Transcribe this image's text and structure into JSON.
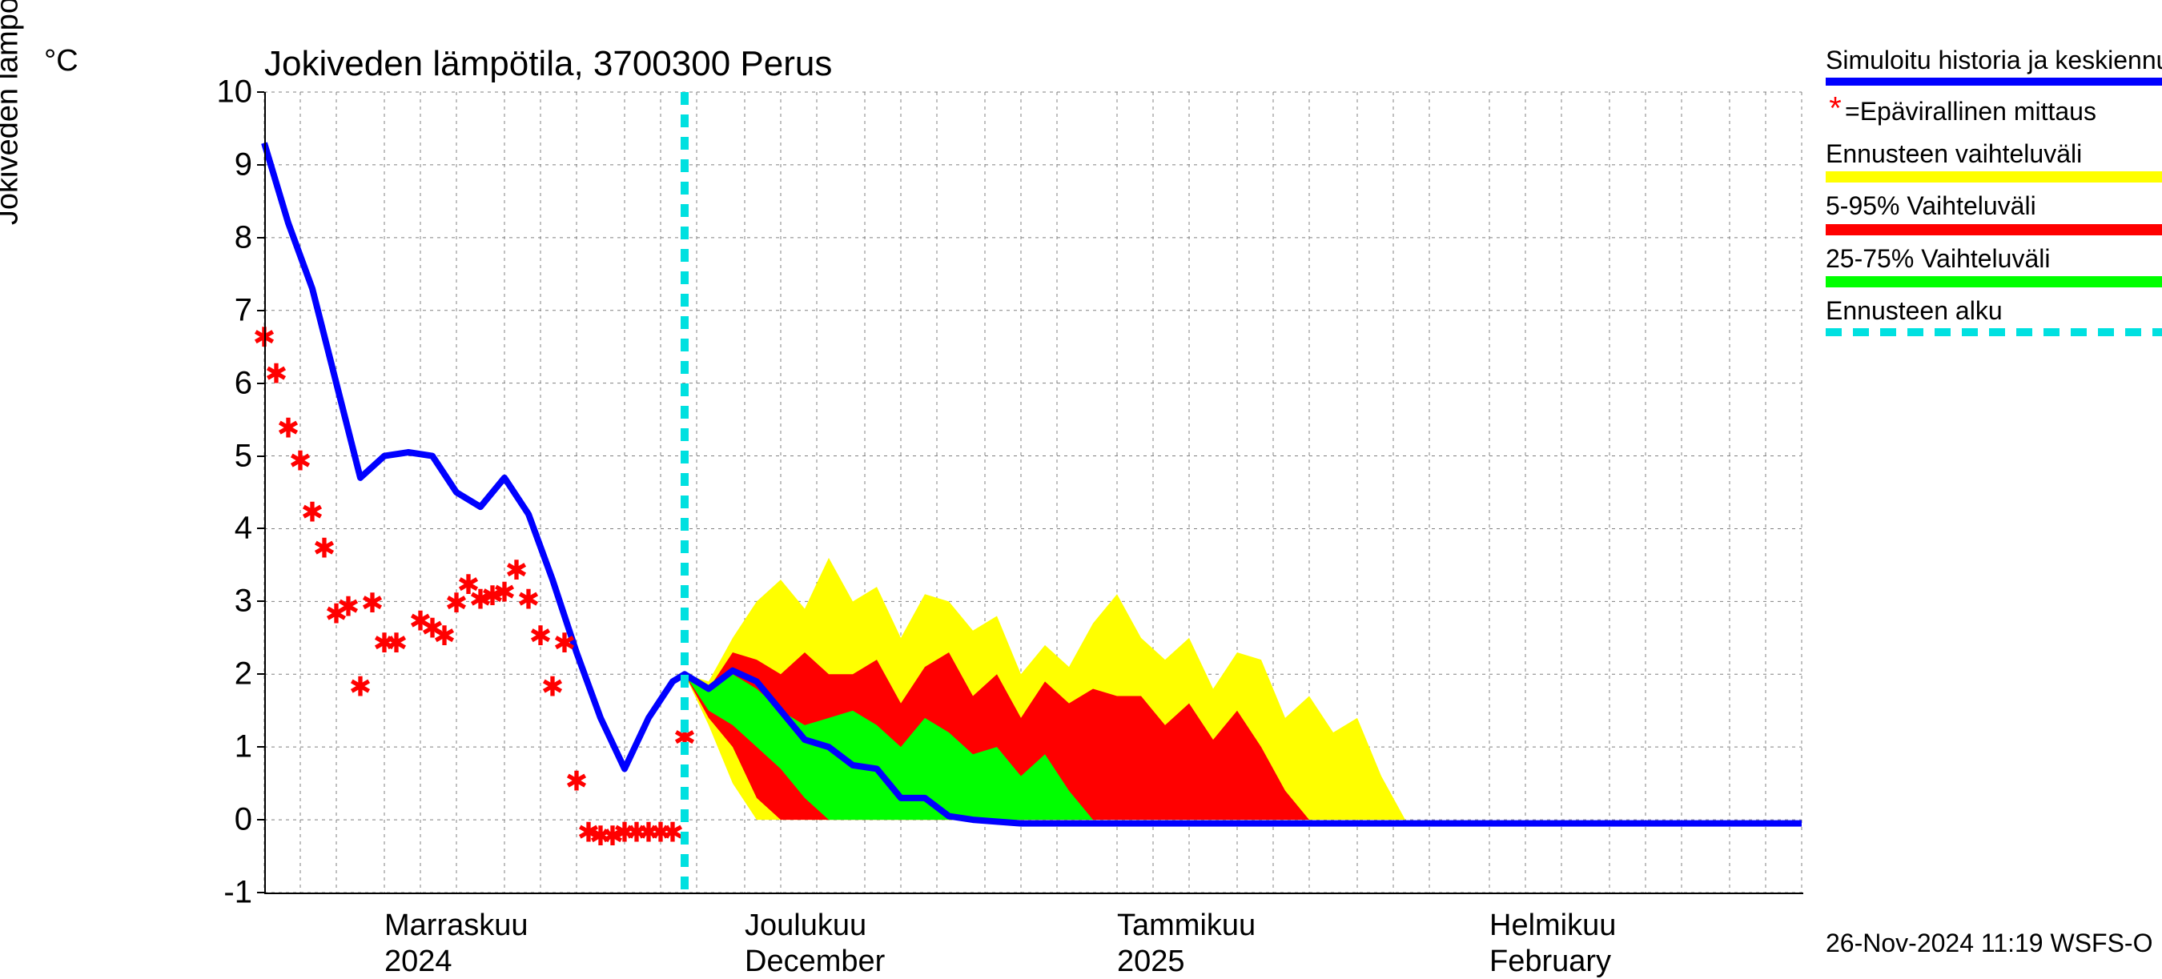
{
  "chart": {
    "title": "Jokiveden lämpötila, 3700300 Perus",
    "y_axis_label": "Jokiveden lämpötila / Water temperature",
    "y_axis_unit": "°C",
    "ylim": [
      -1,
      10
    ],
    "ytick_step": 1,
    "yticks": [
      -1,
      0,
      1,
      2,
      3,
      4,
      5,
      6,
      7,
      8,
      9,
      10
    ],
    "x_domain_days": 128,
    "x_start_date": "2024-10-22",
    "x_month_labels": [
      {
        "label": "Marraskuu",
        "sub": "2024",
        "day": 10
      },
      {
        "label": "Joulukuu",
        "sub": "December",
        "day": 40
      },
      {
        "label": "Tammikuu",
        "sub": "2025",
        "day": 71
      },
      {
        "label": "Helmikuu",
        "sub": "February",
        "day": 102
      }
    ],
    "minor_xgrid_days": [
      0,
      3,
      6,
      10,
      13,
      16,
      20,
      23,
      26,
      30,
      33,
      36,
      40,
      43,
      46,
      50,
      53,
      56,
      60,
      63,
      66,
      71,
      74,
      77,
      81,
      84,
      87,
      91,
      94,
      97,
      102,
      105,
      108,
      112,
      115,
      118,
      122,
      125,
      128
    ],
    "forecast_start_day": 35,
    "colors": {
      "blue_line": "#0000ff",
      "obs_marker": "#ff0000",
      "yellow_band": "#ffff00",
      "red_band": "#ff0000",
      "green_band": "#00ff00",
      "cyan_line": "#00e0e0",
      "grid": "#808080",
      "background": "#ffffff"
    },
    "line_width_blue": 8,
    "cyan_dash": "16 12",
    "blue_line": [
      {
        "d": 0,
        "v": 9.3
      },
      {
        "d": 2,
        "v": 8.2
      },
      {
        "d": 4,
        "v": 7.3
      },
      {
        "d": 6,
        "v": 6.0
      },
      {
        "d": 8,
        "v": 4.7
      },
      {
        "d": 10,
        "v": 5.0
      },
      {
        "d": 12,
        "v": 5.05
      },
      {
        "d": 14,
        "v": 5.0
      },
      {
        "d": 16,
        "v": 4.5
      },
      {
        "d": 18,
        "v": 4.3
      },
      {
        "d": 20,
        "v": 4.7
      },
      {
        "d": 22,
        "v": 4.2
      },
      {
        "d": 24,
        "v": 3.3
      },
      {
        "d": 26,
        "v": 2.3
      },
      {
        "d": 28,
        "v": 1.4
      },
      {
        "d": 30,
        "v": 0.7
      },
      {
        "d": 32,
        "v": 1.4
      },
      {
        "d": 34,
        "v": 1.9
      },
      {
        "d": 35,
        "v": 2.0
      },
      {
        "d": 37,
        "v": 1.8
      },
      {
        "d": 39,
        "v": 2.05
      },
      {
        "d": 41,
        "v": 1.9
      },
      {
        "d": 43,
        "v": 1.5
      },
      {
        "d": 45,
        "v": 1.1
      },
      {
        "d": 47,
        "v": 1.0
      },
      {
        "d": 49,
        "v": 0.75
      },
      {
        "d": 51,
        "v": 0.7
      },
      {
        "d": 53,
        "v": 0.3
      },
      {
        "d": 55,
        "v": 0.3
      },
      {
        "d": 57,
        "v": 0.05
      },
      {
        "d": 59,
        "v": 0.0
      },
      {
        "d": 63,
        "v": -0.05
      },
      {
        "d": 128,
        "v": -0.05
      }
    ],
    "yellow_band": {
      "upper": [
        {
          "d": 35,
          "v": 2.0
        },
        {
          "d": 37,
          "v": 1.9
        },
        {
          "d": 39,
          "v": 2.5
        },
        {
          "d": 41,
          "v": 3.0
        },
        {
          "d": 43,
          "v": 3.3
        },
        {
          "d": 45,
          "v": 2.9
        },
        {
          "d": 47,
          "v": 3.6
        },
        {
          "d": 49,
          "v": 3.0
        },
        {
          "d": 51,
          "v": 3.2
        },
        {
          "d": 53,
          "v": 2.5
        },
        {
          "d": 55,
          "v": 3.1
        },
        {
          "d": 57,
          "v": 3.0
        },
        {
          "d": 59,
          "v": 2.6
        },
        {
          "d": 61,
          "v": 2.8
        },
        {
          "d": 63,
          "v": 2.0
        },
        {
          "d": 65,
          "v": 2.4
        },
        {
          "d": 67,
          "v": 2.1
        },
        {
          "d": 69,
          "v": 2.7
        },
        {
          "d": 71,
          "v": 3.1
        },
        {
          "d": 73,
          "v": 2.5
        },
        {
          "d": 75,
          "v": 2.2
        },
        {
          "d": 77,
          "v": 2.5
        },
        {
          "d": 79,
          "v": 1.8
        },
        {
          "d": 81,
          "v": 2.3
        },
        {
          "d": 83,
          "v": 2.2
        },
        {
          "d": 85,
          "v": 1.4
        },
        {
          "d": 87,
          "v": 1.7
        },
        {
          "d": 89,
          "v": 1.2
        },
        {
          "d": 91,
          "v": 1.4
        },
        {
          "d": 93,
          "v": 0.6
        },
        {
          "d": 95,
          "v": 0.0
        }
      ],
      "lower": [
        {
          "d": 35,
          "v": 2.0
        },
        {
          "d": 37,
          "v": 1.3
        },
        {
          "d": 39,
          "v": 0.5
        },
        {
          "d": 41,
          "v": 0.0
        },
        {
          "d": 95,
          "v": 0.0
        }
      ]
    },
    "red_band": {
      "upper": [
        {
          "d": 35,
          "v": 2.0
        },
        {
          "d": 37,
          "v": 1.8
        },
        {
          "d": 39,
          "v": 2.3
        },
        {
          "d": 41,
          "v": 2.2
        },
        {
          "d": 43,
          "v": 2.0
        },
        {
          "d": 45,
          "v": 2.3
        },
        {
          "d": 47,
          "v": 2.0
        },
        {
          "d": 49,
          "v": 2.0
        },
        {
          "d": 51,
          "v": 2.2
        },
        {
          "d": 53,
          "v": 1.6
        },
        {
          "d": 55,
          "v": 2.1
        },
        {
          "d": 57,
          "v": 2.3
        },
        {
          "d": 59,
          "v": 1.7
        },
        {
          "d": 61,
          "v": 2.0
        },
        {
          "d": 63,
          "v": 1.4
        },
        {
          "d": 65,
          "v": 1.9
        },
        {
          "d": 67,
          "v": 1.6
        },
        {
          "d": 69,
          "v": 1.8
        },
        {
          "d": 71,
          "v": 1.7
        },
        {
          "d": 73,
          "v": 1.7
        },
        {
          "d": 75,
          "v": 1.3
        },
        {
          "d": 77,
          "v": 1.6
        },
        {
          "d": 79,
          "v": 1.1
        },
        {
          "d": 81,
          "v": 1.5
        },
        {
          "d": 83,
          "v": 1.0
        },
        {
          "d": 85,
          "v": 0.4
        },
        {
          "d": 87,
          "v": 0.0
        }
      ],
      "lower": [
        {
          "d": 35,
          "v": 2.0
        },
        {
          "d": 37,
          "v": 1.4
        },
        {
          "d": 39,
          "v": 1.0
        },
        {
          "d": 41,
          "v": 0.3
        },
        {
          "d": 43,
          "v": 0.0
        },
        {
          "d": 87,
          "v": 0.0
        }
      ]
    },
    "green_band": {
      "upper": [
        {
          "d": 35,
          "v": 2.0
        },
        {
          "d": 37,
          "v": 1.8
        },
        {
          "d": 39,
          "v": 2.0
        },
        {
          "d": 41,
          "v": 1.8
        },
        {
          "d": 43,
          "v": 1.5
        },
        {
          "d": 45,
          "v": 1.3
        },
        {
          "d": 47,
          "v": 1.4
        },
        {
          "d": 49,
          "v": 1.5
        },
        {
          "d": 51,
          "v": 1.3
        },
        {
          "d": 53,
          "v": 1.0
        },
        {
          "d": 55,
          "v": 1.4
        },
        {
          "d": 57,
          "v": 1.2
        },
        {
          "d": 59,
          "v": 0.9
        },
        {
          "d": 61,
          "v": 1.0
        },
        {
          "d": 63,
          "v": 0.6
        },
        {
          "d": 65,
          "v": 0.9
        },
        {
          "d": 67,
          "v": 0.4
        },
        {
          "d": 69,
          "v": 0.0
        }
      ],
      "lower": [
        {
          "d": 35,
          "v": 2.0
        },
        {
          "d": 37,
          "v": 1.5
        },
        {
          "d": 39,
          "v": 1.3
        },
        {
          "d": 41,
          "v": 1.0
        },
        {
          "d": 43,
          "v": 0.7
        },
        {
          "d": 45,
          "v": 0.3
        },
        {
          "d": 47,
          "v": 0.0
        },
        {
          "d": 69,
          "v": 0.0
        }
      ]
    },
    "observations": [
      {
        "d": 0,
        "v": 6.6
      },
      {
        "d": 1,
        "v": 6.1
      },
      {
        "d": 2,
        "v": 5.35
      },
      {
        "d": 3,
        "v": 4.9
      },
      {
        "d": 4,
        "v": 4.2
      },
      {
        "d": 5,
        "v": 3.7
      },
      {
        "d": 6,
        "v": 2.8
      },
      {
        "d": 7,
        "v": 2.9
      },
      {
        "d": 8,
        "v": 1.8
      },
      {
        "d": 9,
        "v": 2.95
      },
      {
        "d": 10,
        "v": 2.4
      },
      {
        "d": 11,
        "v": 2.4
      },
      {
        "d": 13,
        "v": 2.7
      },
      {
        "d": 14,
        "v": 2.6
      },
      {
        "d": 15,
        "v": 2.5
      },
      {
        "d": 16,
        "v": 2.95
      },
      {
        "d": 17,
        "v": 3.2
      },
      {
        "d": 18,
        "v": 3.0
      },
      {
        "d": 19,
        "v": 3.05
      },
      {
        "d": 20,
        "v": 3.1
      },
      {
        "d": 21,
        "v": 3.4
      },
      {
        "d": 22,
        "v": 3.0
      },
      {
        "d": 23,
        "v": 2.5
      },
      {
        "d": 24,
        "v": 1.8
      },
      {
        "d": 25,
        "v": 2.4
      },
      {
        "d": 26,
        "v": 0.5
      },
      {
        "d": 27,
        "v": -0.2
      },
      {
        "d": 28,
        "v": -0.25
      },
      {
        "d": 29,
        "v": -0.25
      },
      {
        "d": 30,
        "v": -0.2
      },
      {
        "d": 31,
        "v": -0.2
      },
      {
        "d": 32,
        "v": -0.2
      },
      {
        "d": 33,
        "v": -0.2
      },
      {
        "d": 34,
        "v": -0.2
      },
      {
        "d": 35,
        "v": 1.1
      }
    ]
  },
  "legend": {
    "sim_history": "Simuloitu historia ja keskiennuste",
    "obs_prefix": "*=",
    "obs_label": "Epävirallinen mittaus",
    "forecast_range": "Ennusteen vaihteluväli",
    "range_5_95": "5-95% Vaihteluväli",
    "range_25_75": "25-75% Vaihteluväli",
    "forecast_start": "Ennusteen alku"
  },
  "timestamp": "26-Nov-2024 11:19 WSFS-O"
}
